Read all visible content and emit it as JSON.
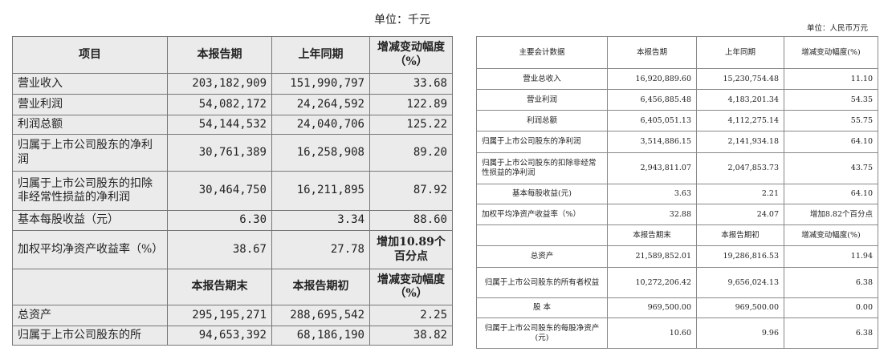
{
  "left": {
    "unit": "单位：千元",
    "header": [
      "项目",
      "本报告期",
      "上年同期",
      "增减变动幅度（%）"
    ],
    "rows": [
      [
        "营业收入",
        "203,182,909",
        "151,990,797",
        "33.68"
      ],
      [
        "营业利润",
        "54,082,172",
        "24,264,592",
        "122.89"
      ],
      [
        "利润总额",
        "54,144,532",
        "24,040,706",
        "125.22"
      ],
      [
        "归属于上市公司股东的净利润",
        "30,761,389",
        "16,258,908",
        "89.20"
      ],
      [
        "归属于上市公司股东的扣除非经常性损益的净利润",
        "30,464,750",
        "16,211,895",
        "87.92"
      ],
      [
        "基本每股收益（元）",
        "6.30",
        "3.34",
        "88.60"
      ],
      [
        "加权平均净资产收益率（%）",
        "38.67",
        "27.78",
        "增加10.89个百分点"
      ]
    ],
    "header2": [
      "",
      "本报告期末",
      "本报告期初",
      "增减变动幅度（%）"
    ],
    "rows2": [
      [
        "总资产",
        "295,195,271",
        "288,695,542",
        "2.25"
      ],
      [
        "归属于上市公司股东的所",
        "94,653,392",
        "68,186,190",
        "38.82"
      ]
    ]
  },
  "right": {
    "unit": "单位：人民币万元",
    "header": [
      "主要会计数据",
      "本报告期",
      "上年同期",
      "增减变动幅度(%)"
    ],
    "rows": [
      [
        "营业总收入",
        "16,920,889.60",
        "15,230,754.48",
        "11.10"
      ],
      [
        "营业利润",
        "6,456,885.48",
        "4,183,201.34",
        "54.35"
      ],
      [
        "利润总额",
        "6,405,051.13",
        "4,112,275.14",
        "55.75"
      ],
      [
        "归属于上市公司股东的净利润",
        "3,514,886.15",
        "2,141,934.18",
        "64.10"
      ],
      [
        "归属于上市公司股东的扣除非经常性损益的净利润",
        "2,943,811.07",
        "2,047,853.73",
        "43.75"
      ],
      [
        "基本每股收益(元)",
        "3.63",
        "2.21",
        "64.10"
      ],
      [
        "加权平均净资产收益率（%）",
        "32.88",
        "24.07",
        "增加8.82个百分点"
      ]
    ],
    "header2": [
      "",
      "本报告期末",
      "本报告期初",
      "增减变动幅度(%)"
    ],
    "rows2": [
      [
        "总资产",
        "21,589,852.01",
        "19,286,816.53",
        "11.94"
      ],
      [
        "归属于上市公司股东的所有者权益",
        "10,272,206.42",
        "9,656,024.13",
        "6.38"
      ],
      [
        "股 本",
        "969,500.00",
        "969,500.00",
        "0.00"
      ],
      [
        "归属于上市公司股东的每股净资产(元)",
        "10.60",
        "9.96",
        "6.38"
      ]
    ]
  }
}
